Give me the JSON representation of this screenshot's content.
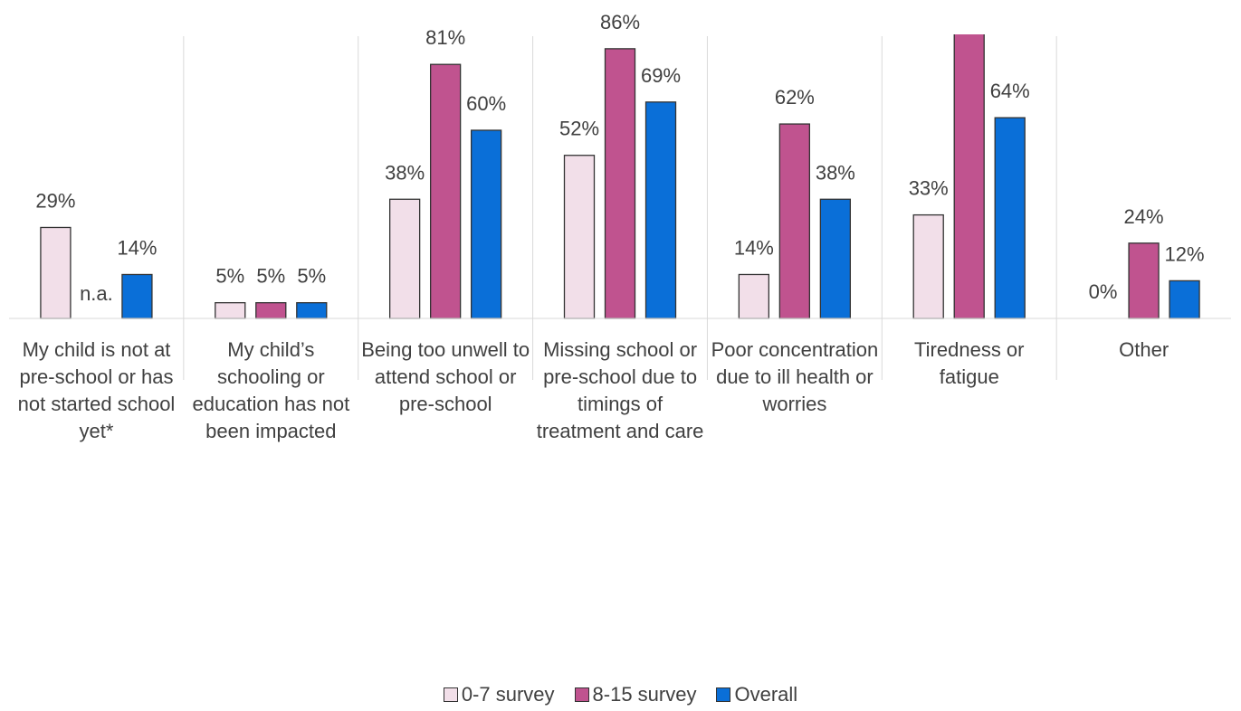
{
  "chart_data": {
    "type": "bar",
    "categories": [
      "My child is not at pre-school or has not started school yet*",
      "My child’s schooling or education has not been impacted",
      "Being too unwell to attend school or pre-school",
      "Missing school or pre-school due to timings of treatment and care",
      "Poor concentration due to ill health or worries",
      "Tiredness or fatigue",
      "Other"
    ],
    "series": [
      {
        "name": "0-7 survey",
        "color": "#f2dfe9",
        "values": [
          29,
          5,
          38,
          52,
          14,
          33,
          0
        ],
        "value_labels": [
          "29%",
          "5%",
          "38%",
          "52%",
          "14%",
          "33%",
          "0%"
        ]
      },
      {
        "name": "8-15 survey",
        "color": "#c0538f",
        "values": [
          null,
          5,
          81,
          86,
          62,
          93,
          24
        ],
        "value_labels": [
          "n.a.",
          "5%",
          "81%",
          "86%",
          "62%",
          null,
          "24%"
        ]
      },
      {
        "name": "Overall",
        "color": "#0a6fd8",
        "values": [
          14,
          5,
          60,
          69,
          38,
          64,
          12
        ],
        "value_labels": [
          "14%",
          "5%",
          "60%",
          "69%",
          "38%",
          "64%",
          "12%"
        ]
      }
    ],
    "ylim": [
      0,
      90
    ],
    "legend": "bottom"
  }
}
